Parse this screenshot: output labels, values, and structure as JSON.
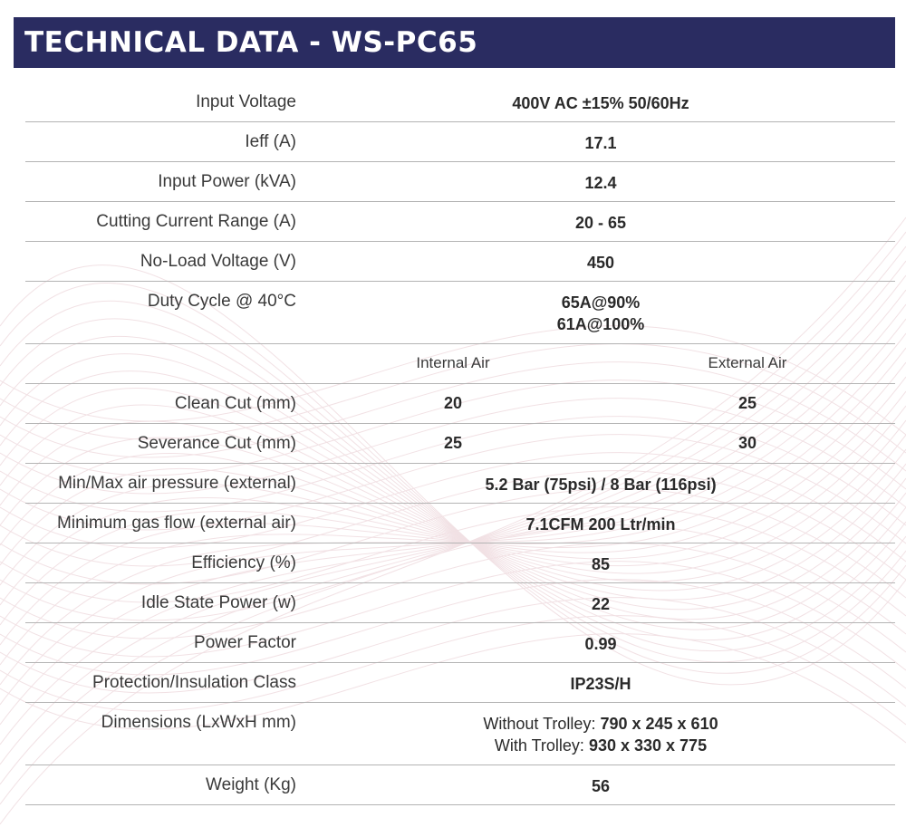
{
  "title": "TECHNICAL DATA - WS-PC65",
  "colors": {
    "title_bg": "#2a2c61",
    "title_text": "#ffffff",
    "divider": "#b4b4b4",
    "wave": "#e7c9cf"
  },
  "rows": {
    "input_voltage": {
      "label": "Input Voltage",
      "value": "400V AC ±15% 50/60Hz"
    },
    "ieff": {
      "label": "Ieff (A)",
      "value": "17.1"
    },
    "input_power": {
      "label": "Input Power (kVA)",
      "value": "12.4"
    },
    "cutting_current": {
      "label": "Cutting Current Range (A)",
      "value": "20 - 65"
    },
    "no_load_voltage": {
      "label": "No-Load Voltage (V)",
      "value": "450"
    },
    "duty_cycle": {
      "label": "Duty Cycle @ 40°C",
      "line1": "65A@90%",
      "line2": "61A@100%"
    },
    "air_header": {
      "internal": "Internal Air",
      "external": "External Air"
    },
    "clean_cut": {
      "label": "Clean Cut (mm)",
      "internal": "20",
      "external": "25"
    },
    "severance_cut": {
      "label": "Severance Cut (mm)",
      "internal": "25",
      "external": "30"
    },
    "air_pressure": {
      "label": "Min/Max air pressure (external)",
      "value": "5.2 Bar (75psi) / 8 Bar (116psi)"
    },
    "gas_flow": {
      "label": "Minimum gas flow (external air)",
      "value": "7.1CFM 200 Ltr/min"
    },
    "efficiency": {
      "label": "Efficiency (%)",
      "value": "85"
    },
    "idle_power": {
      "label": "Idle State Power (w)",
      "value": "22"
    },
    "power_factor": {
      "label": "Power Factor",
      "value": "0.99"
    },
    "protection": {
      "label": "Protection/Insulation Class",
      "value": "IP23S/H"
    },
    "dimensions": {
      "label": "Dimensions (LxWxH mm)",
      "line1_prefix": "Without Trolley:",
      "line1_value": "790 x 245 x 610",
      "line2_prefix": "With Trolley:",
      "line2_value": "930 x 330 x 775"
    },
    "weight": {
      "label": "Weight (Kg)",
      "value": "56"
    }
  }
}
